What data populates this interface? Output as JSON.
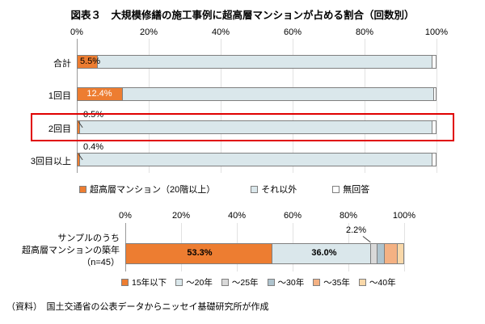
{
  "title": "図表３　大規模修繕の施工事例に超高層マンションが占める割合（回数別）",
  "footer": "（資料）　国土交通省の公表データからニッセイ基礎研究所が作成",
  "labels": {
    "total": "5.5%",
    "first": "12.4%",
    "second": "0.5%",
    "third_plus": "0.4%",
    "sample_under15": "53.3%",
    "sample_20": "36.0%",
    "sample_callout": "2.2%"
  },
  "sample_axis_label": {
    "line1": "サンプルのうち",
    "line2": "超高層マンションの築年",
    "line3": "（n=45）"
  },
  "highlight_color": "#E00000",
  "chart_data": [
    {
      "type": "bar",
      "orientation": "horizontal",
      "stacked": true,
      "title": "大規模修繕の施工事例に超高層マンションが占める割合（回数別）",
      "categories": [
        "合計",
        "1回目",
        "2回目",
        "3回目以上"
      ],
      "ticks": [
        "0%",
        "20%",
        "40%",
        "60%",
        "80%",
        "100%"
      ],
      "xlim": [
        0,
        100
      ],
      "grid": true,
      "legend_position": "bottom",
      "series": [
        {
          "name": "超高層マンション（20階以上）",
          "color": "#ED7D31",
          "values": [
            5.5,
            12.4,
            0.5,
            0.4
          ]
        },
        {
          "name": "それ以外",
          "color": "#DAE7EB",
          "values": [
            93.6,
            87.1,
            98.5,
            98.6
          ]
        },
        {
          "name": "無回答",
          "color": "#FFFFFF",
          "values": [
            0.9,
            0.5,
            1.0,
            1.0
          ]
        }
      ],
      "data_labels": [
        "5.5%",
        "12.4%",
        "0.5%",
        "0.4%"
      ],
      "highlighted_category": "2回目"
    },
    {
      "type": "bar",
      "orientation": "horizontal",
      "stacked": true,
      "title": "サンプルのうち超高層マンションの築年（n=45）",
      "categories": [
        "サンプルのうち超高層マンションの築年（n=45）"
      ],
      "ticks": [
        "0%",
        "20%",
        "40%",
        "60%",
        "80%",
        "100%"
      ],
      "xlim": [
        0,
        100
      ],
      "grid": true,
      "legend_position": "bottom",
      "series": [
        {
          "name": "15年以下",
          "color": "#ED7D31",
          "values": [
            53.3
          ]
        },
        {
          "name": "～20年",
          "color": "#DAE7EB",
          "values": [
            36.0
          ]
        },
        {
          "name": "～25年",
          "color": "#D9D9D9",
          "values": [
            2.2
          ]
        },
        {
          "name": "～30年",
          "color": "#AFC4CE",
          "values": [
            2.2
          ]
        },
        {
          "name": "～35年",
          "color": "#F4B183",
          "values": [
            4.4
          ]
        },
        {
          "name": "～40年",
          "color": "#F9D8A9",
          "values": [
            2.2
          ]
        }
      ],
      "data_labels": [
        "53.3%",
        "36.0%",
        "2.2%"
      ]
    }
  ]
}
